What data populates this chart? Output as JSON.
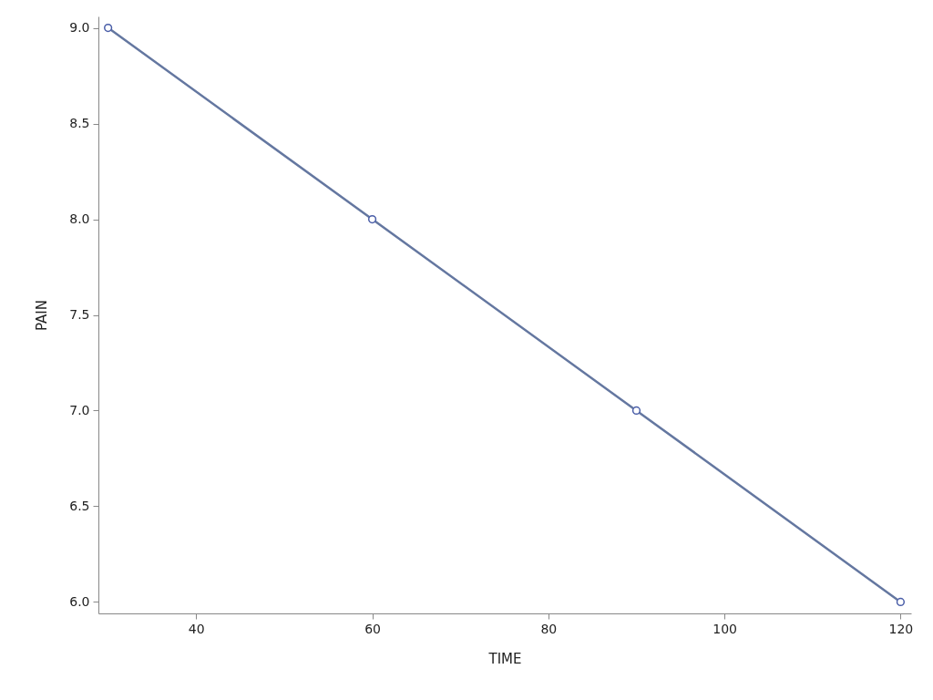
{
  "chart_data": {
    "type": "line",
    "xlabel": "TIME",
    "ylabel": "PAIN",
    "x": [
      30,
      60,
      90,
      120
    ],
    "series": [
      {
        "color": "#6477a0",
        "values": [
          9,
          8,
          7,
          6
        ]
      }
    ],
    "xlim": [
      28.9,
      121.2
    ],
    "xticks": [
      40,
      60,
      80,
      100,
      120
    ],
    "ylim": [
      5.94,
      9.06
    ],
    "yticks": [
      {
        "value": 6,
        "label": "6.0"
      },
      6.5,
      {
        "value": 7,
        "label": "7.0"
      },
      7.5,
      {
        "value": 8,
        "label": "8.0"
      },
      8.5,
      {
        "value": 9,
        "label": "9.0"
      }
    ],
    "marker": "circle",
    "line_style": "solid",
    "grid": false
  }
}
